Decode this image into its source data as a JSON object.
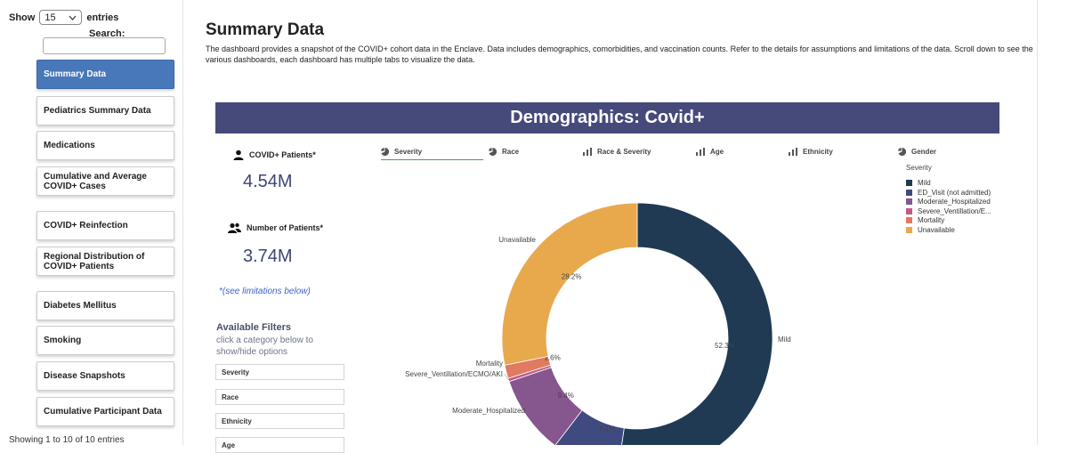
{
  "sidebar": {
    "show_label": "Show",
    "entries_value": "15",
    "entries_label": "entries",
    "search_label": "Search:",
    "search_value": "",
    "items": [
      {
        "label": "Summary Data",
        "active": true
      },
      {
        "label": "Pediatrics Summary Data"
      },
      {
        "label": "Medications"
      },
      {
        "label": "Cumulative and Average COVID+ Cases"
      },
      {
        "label": "COVID+ Reinfection"
      },
      {
        "label": "Regional Distribution of COVID+ Patients"
      },
      {
        "label": "Diabetes Mellitus"
      },
      {
        "label": "Smoking"
      },
      {
        "label": "Disease Snapshots"
      },
      {
        "label": "Cumulative Participant Data"
      }
    ],
    "showing_text": "Showing 1 to 10 of 10 entries"
  },
  "main": {
    "title": "Summary Data",
    "description": "The dashboard provides a snapshot of the COVID+ cohort data in the Enclave. Data includes demographics, comorbidities, and vaccination counts. Refer to the details for assumptions and limitations of the data. Scroll down to see the various dashboards, each dashboard has multiple tabs to visualize the data."
  },
  "dashboard": {
    "banner": "Demographics: Covid+",
    "stats": [
      {
        "label": "COVID+ Patients*",
        "value": "4.54M",
        "icon": "person-icon"
      },
      {
        "label": "Number of Patients*",
        "value": "3.74M",
        "icon": "people-icon"
      }
    ],
    "limitations": "*(see limitations below)",
    "filters_title": "Available Filters",
    "filters_subtitle": "click a category below to show/hide options",
    "filters": [
      "Severity",
      "Race",
      "Ethnicity",
      "Age"
    ],
    "tabs": [
      {
        "label": "Severity",
        "icon": "pie-icon",
        "active": true
      },
      {
        "label": "Race",
        "icon": "pie-icon"
      },
      {
        "label": "Race & Severity",
        "icon": "bar-icon"
      },
      {
        "label": "Age",
        "icon": "bar-icon"
      },
      {
        "label": "Ethnicity",
        "icon": "bar-icon"
      },
      {
        "label": "Gender",
        "icon": "pie-icon"
      }
    ]
  },
  "chart_data": {
    "type": "pie",
    "legend_title": "Severity",
    "legend_position": "right",
    "slices": [
      {
        "label": "Mild",
        "legend": "Mild",
        "value": 52.3,
        "value_label": "52.3%",
        "color": "#1f3a52"
      },
      {
        "label": "",
        "legend": "ED_Visit (not admitted)",
        "value": 8.1,
        "value_label": "8.1%",
        "color": "#3f4b80"
      },
      {
        "label": "Moderate_Hospitalized",
        "legend": "Moderate_Hospitalized",
        "value": 9.4,
        "value_label": "9.4%",
        "color": "#86568f"
      },
      {
        "label": "Severe_Ventillation/ECMO/AKI",
        "legend": "Severe_Ventillation/E...",
        "value": 0.4,
        "value_label": "",
        "color": "#c25a86"
      },
      {
        "label": "Mortality",
        "legend": "Mortality",
        "value": 1.6,
        "value_label": "1.6%",
        "color": "#e07a60"
      },
      {
        "label": "Unavailable",
        "legend": "Unavailable",
        "value": 28.2,
        "value_label": "28.2%",
        "color": "#e8a94d"
      }
    ]
  }
}
